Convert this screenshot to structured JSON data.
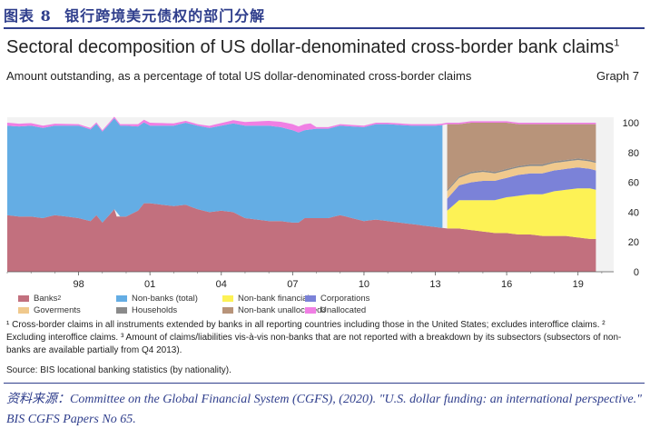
{
  "header": {
    "figure_label": "图表 8",
    "figure_title": "银行跨境美元债权的部门分解"
  },
  "chart_title": "Sectoral decomposition of US dollar-denominated cross-border bank claims",
  "chart_title_sup": "1",
  "chart_subtitle": "Amount outstanding, as a percentage of total US dollar-denominated cross-border claims",
  "graph_number": "Graph 7",
  "legend": [
    {
      "key": "banks",
      "label": "Banks",
      "sup": "2",
      "color": "#c2707e"
    },
    {
      "key": "non_banks_total",
      "label": "Non-banks (total)",
      "sup": "",
      "color": "#64ade4"
    },
    {
      "key": "non_bank_financials",
      "label": "Non-bank financials",
      "sup": "",
      "color": "#fdf255"
    },
    {
      "key": "corporations",
      "label": "Corporations",
      "sup": "",
      "color": "#7b82d8"
    },
    {
      "key": "governments",
      "label": "Goverments",
      "sup": "",
      "color": "#f0c98d"
    },
    {
      "key": "households",
      "label": "Households",
      "sup": "",
      "color": "#8a8a8a"
    },
    {
      "key": "non_bank_unallocated",
      "label": "Non-bank unallocated",
      "sup": "3",
      "color": "#b8947a"
    },
    {
      "key": "unallocated",
      "label": "Unallocated",
      "sup": "",
      "color": "#f07fe4"
    }
  ],
  "footnotes": {
    "f1": "¹ Cross-border claims in all instruments extended by banks in all reporting countries including those in the United States; excludes interoffice claims.  ² Excluding interoffice claims.  ³ Amount of claims/liabilities vis-à-vis non-banks that are not reported with a breakdown by its subsectors (subsectors of non-banks are available partially from Q4 2013).",
    "source": "Source: BIS locational banking statistics (by nationality)."
  },
  "citation": "资料来源：Committee on the Global Financial System (CGFS), (2020). \"U.S. dollar funding: an international perspective.\" BIS CGFS Papers No 65.",
  "chart_data": {
    "type": "area",
    "stacked": true,
    "x_tick_labels": [
      "98",
      "01",
      "04",
      "07",
      "10",
      "13",
      "16",
      "19"
    ],
    "x_tick_years": [
      1998,
      2001,
      2004,
      2007,
      2010,
      2013,
      2016,
      2019
    ],
    "xlim": [
      1995.0,
      2020.5
    ],
    "ylim": [
      0,
      100
    ],
    "y_ticks": [
      0,
      20,
      40,
      60,
      80,
      100
    ],
    "grid": false,
    "legend_position": "bottom",
    "series": [
      {
        "key": "banks",
        "name": "Banks",
        "points": [
          [
            1995.0,
            38
          ],
          [
            1995.5,
            37
          ],
          [
            1996.0,
            37
          ],
          [
            1996.5,
            36
          ],
          [
            1997.0,
            38
          ],
          [
            1997.5,
            37
          ],
          [
            1998.0,
            36
          ],
          [
            1998.5,
            34
          ],
          [
            1998.75,
            38
          ],
          [
            1999.0,
            33
          ],
          [
            1999.4,
            40
          ],
          [
            1999.5,
            42
          ],
          [
            1999.6,
            37
          ],
          [
            2000.0,
            37
          ],
          [
            2000.5,
            41
          ],
          [
            2000.75,
            46
          ],
          [
            2001.0,
            46
          ],
          [
            2001.5,
            45
          ],
          [
            2002.0,
            44
          ],
          [
            2002.5,
            45
          ],
          [
            2003.0,
            42
          ],
          [
            2003.5,
            40
          ],
          [
            2004.0,
            41
          ],
          [
            2004.5,
            40
          ],
          [
            2005.0,
            36
          ],
          [
            2005.5,
            35
          ],
          [
            2006.0,
            34
          ],
          [
            2006.5,
            34
          ],
          [
            2007.0,
            33
          ],
          [
            2007.25,
            33
          ],
          [
            2007.5,
            36
          ],
          [
            2008.0,
            36
          ],
          [
            2008.5,
            36
          ],
          [
            2009.0,
            38
          ],
          [
            2009.5,
            36
          ],
          [
            2010.0,
            34
          ],
          [
            2010.5,
            35
          ],
          [
            2011.0,
            34
          ],
          [
            2011.5,
            33
          ],
          [
            2012.0,
            32
          ],
          [
            2012.5,
            31
          ],
          [
            2013.0,
            30
          ],
          [
            2013.5,
            29
          ],
          [
            2014.0,
            29
          ],
          [
            2014.5,
            28
          ],
          [
            2015.0,
            27
          ],
          [
            2015.5,
            26
          ],
          [
            2016.0,
            26
          ],
          [
            2016.5,
            25
          ],
          [
            2017.0,
            25
          ],
          [
            2017.5,
            24
          ],
          [
            2018.0,
            24
          ],
          [
            2018.5,
            24
          ],
          [
            2019.0,
            23
          ],
          [
            2019.5,
            22
          ],
          [
            2019.75,
            22
          ]
        ]
      },
      {
        "key": "non_banks_total",
        "name": "Non-banks (total)",
        "points": [
          [
            1995.0,
            60
          ],
          [
            1996.0,
            61
          ],
          [
            1997.0,
            60
          ],
          [
            1998.0,
            62
          ],
          [
            1999.0,
            61
          ],
          [
            2000.0,
            61
          ],
          [
            2001.0,
            52
          ],
          [
            2002.0,
            54
          ],
          [
            2003.0,
            56
          ],
          [
            2004.0,
            57
          ],
          [
            2005.0,
            62
          ],
          [
            2006.0,
            64
          ],
          [
            2007.0,
            62
          ],
          [
            2007.5,
            59
          ],
          [
            2008.0,
            60
          ],
          [
            2009.0,
            60
          ],
          [
            2010.0,
            63
          ],
          [
            2011.0,
            65
          ],
          [
            2012.0,
            66
          ],
          [
            2013.0,
            68
          ],
          [
            2013.3,
            69
          ]
        ]
      },
      {
        "key": "non_bank_financials",
        "name": "Non-bank financials",
        "points": [
          [
            2013.5,
            12
          ],
          [
            2014.0,
            19
          ],
          [
            2014.5,
            20
          ],
          [
            2015.0,
            21
          ],
          [
            2015.5,
            22
          ],
          [
            2016.0,
            24
          ],
          [
            2016.5,
            26
          ],
          [
            2017.0,
            27
          ],
          [
            2017.5,
            28
          ],
          [
            2018.0,
            30
          ],
          [
            2018.5,
            31
          ],
          [
            2019.0,
            33
          ],
          [
            2019.5,
            34
          ],
          [
            2019.75,
            33
          ]
        ]
      },
      {
        "key": "corporations",
        "name": "Corporations",
        "points": [
          [
            2013.5,
            8
          ],
          [
            2014.0,
            10
          ],
          [
            2014.5,
            12
          ],
          [
            2015.0,
            13
          ],
          [
            2015.5,
            13
          ],
          [
            2016.0,
            13
          ],
          [
            2016.5,
            14
          ],
          [
            2017.0,
            14
          ],
          [
            2017.5,
            14
          ],
          [
            2018.0,
            14
          ],
          [
            2018.5,
            14
          ],
          [
            2019.0,
            14
          ],
          [
            2019.5,
            13
          ],
          [
            2019.75,
            13
          ]
        ]
      },
      {
        "key": "governments",
        "name": "Goverments",
        "points": [
          [
            2013.5,
            5
          ],
          [
            2014.0,
            5
          ],
          [
            2014.5,
            6
          ],
          [
            2015.0,
            6
          ],
          [
            2015.5,
            5
          ],
          [
            2016.0,
            5
          ],
          [
            2016.5,
            5
          ],
          [
            2017.0,
            5
          ],
          [
            2017.5,
            5
          ],
          [
            2018.0,
            5
          ],
          [
            2018.5,
            5
          ],
          [
            2019.0,
            5
          ],
          [
            2019.5,
            5
          ],
          [
            2019.75,
            5
          ]
        ]
      },
      {
        "key": "households",
        "name": "Households",
        "points": [
          [
            2013.5,
            1
          ],
          [
            2014.0,
            1
          ],
          [
            2015.0,
            1
          ],
          [
            2016.0,
            1
          ],
          [
            2017.0,
            1
          ],
          [
            2018.0,
            1
          ],
          [
            2019.0,
            1
          ],
          [
            2019.75,
            1
          ]
        ]
      },
      {
        "key": "non_bank_unallocated",
        "name": "Non-bank unallocated",
        "points": [
          [
            2013.5,
            44
          ],
          [
            2014.0,
            35
          ],
          [
            2014.5,
            33
          ],
          [
            2015.0,
            32
          ],
          [
            2015.5,
            33
          ],
          [
            2016.0,
            31
          ],
          [
            2016.5,
            28
          ],
          [
            2017.0,
            27
          ],
          [
            2017.5,
            27
          ],
          [
            2018.0,
            25
          ],
          [
            2018.5,
            24
          ],
          [
            2019.0,
            23
          ],
          [
            2019.5,
            24
          ],
          [
            2019.75,
            25
          ]
        ]
      },
      {
        "key": "unallocated",
        "name": "Unallocated",
        "points": [
          [
            1995.0,
            2
          ],
          [
            1998.0,
            1
          ],
          [
            2000.0,
            1
          ],
          [
            2001.0,
            2
          ],
          [
            2003.0,
            1
          ],
          [
            2007.0,
            4
          ],
          [
            2007.75,
            4
          ],
          [
            2008.0,
            1
          ],
          [
            2010.0,
            1
          ],
          [
            2012.0,
            1
          ],
          [
            2013.0,
            1
          ],
          [
            2019.75,
            1
          ]
        ]
      }
    ]
  }
}
